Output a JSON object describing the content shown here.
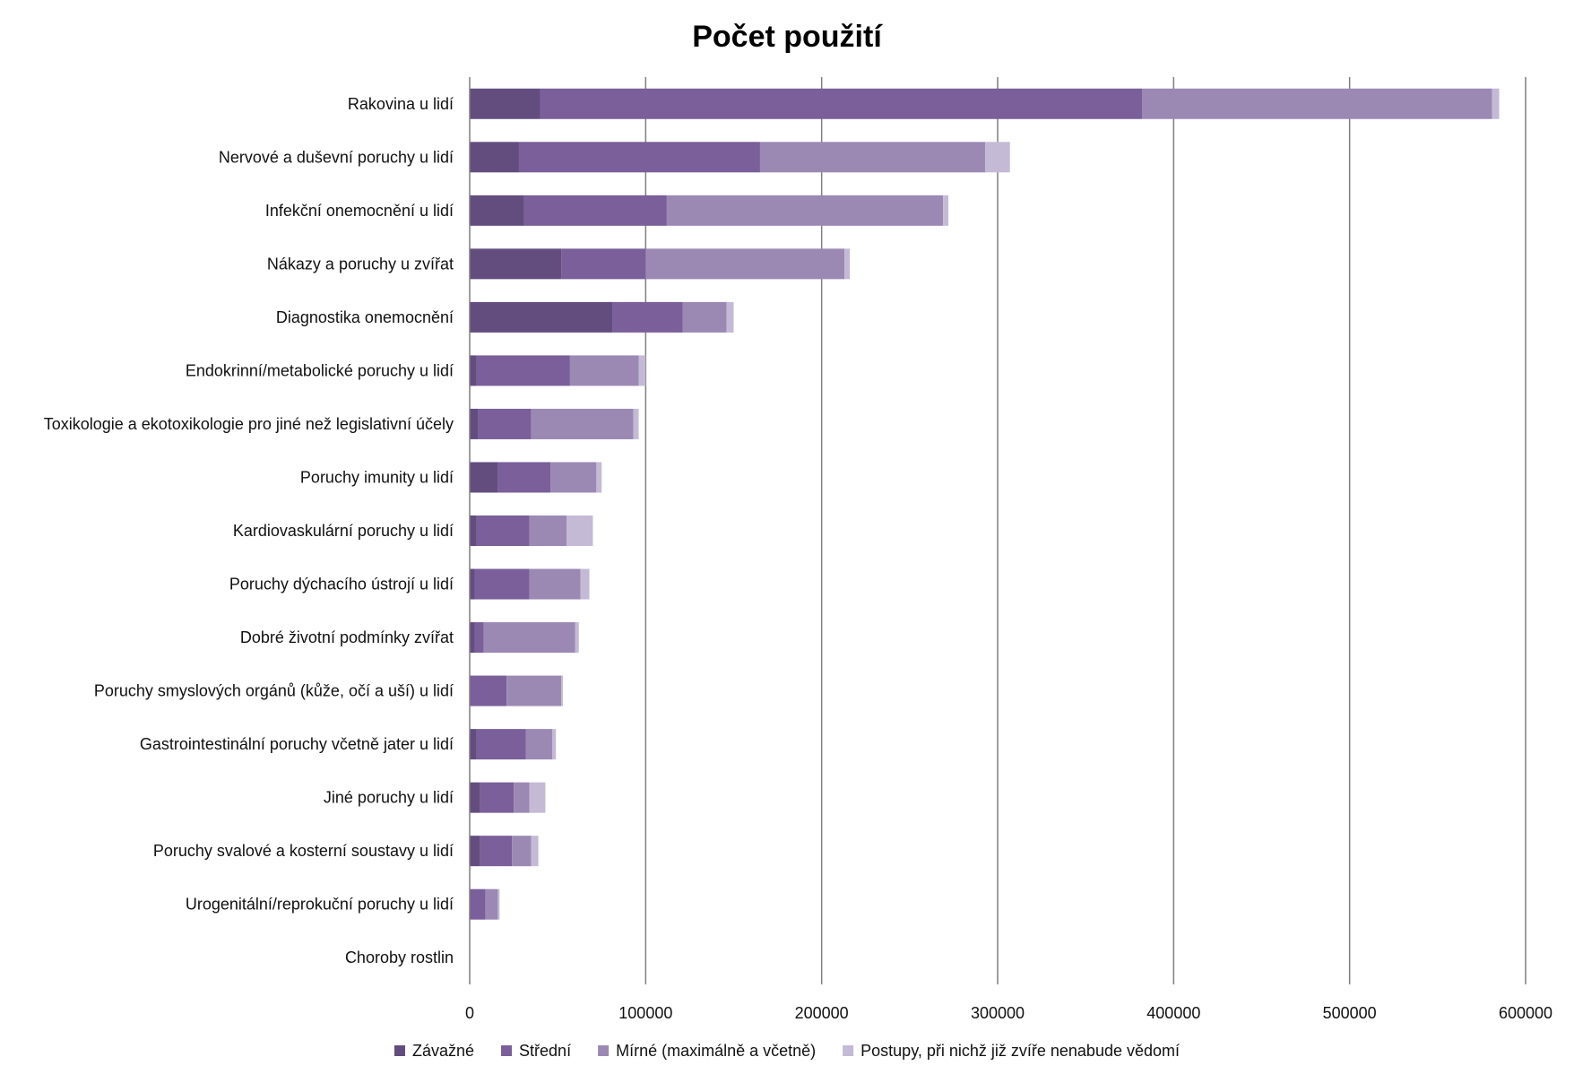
{
  "chart_data": {
    "type": "bar",
    "orientation": "horizontal",
    "stacked": true,
    "title": "Počet použití",
    "xlabel": "",
    "ylabel": "",
    "xlim": [
      0,
      600000
    ],
    "xticks": [
      0,
      100000,
      200000,
      300000,
      400000,
      500000,
      600000
    ],
    "grid": true,
    "legend_position": "bottom",
    "categories": [
      "Rakovina u lidí",
      "Nervové a duševní poruchy u lidí",
      "Infekční onemocnění u lidí",
      "Nákazy a poruchy u zvířat",
      "Diagnostika onemocnění",
      "Endokrinní/metabolické poruchy u lidí",
      "Toxikologie a ekotoxikologie pro jiné než legislativní účely",
      "Poruchy imunity u lidí",
      "Kardiovaskulární poruchy u lidí",
      "Poruchy dýchacího ústrojí u lidí",
      "Dobré životní podmínky zvířat",
      "Poruchy smyslových orgánů (kůže, očí a uší) u lidí",
      "Gastrointestinální poruchy včetně jater u lidí",
      "Jiné poruchy u lidí",
      "Poruchy svalové a kosterní soustavy u lidí",
      "Urogenitální/reprokuční poruchy u lidí",
      "Choroby rostlin"
    ],
    "series": [
      {
        "name": "Závažné",
        "color": "#634d7f",
        "values": [
          40000,
          28000,
          31000,
          52000,
          81000,
          4000,
          5000,
          16000,
          4000,
          3000,
          3000,
          0,
          4000,
          6000,
          6000,
          0,
          0
        ]
      },
      {
        "name": "Střední",
        "color": "#7a5f9a",
        "values": [
          342000,
          137000,
          81000,
          48000,
          40000,
          53000,
          30000,
          30000,
          30000,
          31000,
          5000,
          21000,
          28000,
          19000,
          18000,
          9000,
          0
        ]
      },
      {
        "name": "Mírné (maximálně a včetně)",
        "color": "#9b89b4",
        "values": [
          199000,
          128000,
          157000,
          113000,
          25000,
          39000,
          58000,
          26000,
          21000,
          29000,
          52000,
          31000,
          15000,
          9000,
          11000,
          7000,
          0
        ]
      },
      {
        "name": "Postupy, při nichž již zvíře nenabude vědomí",
        "color": "#c4bad6",
        "values": [
          4000,
          14000,
          3000,
          3000,
          4000,
          4000,
          3000,
          3000,
          15000,
          5000,
          2000,
          1000,
          2000,
          9000,
          4000,
          1000,
          0
        ]
      }
    ]
  }
}
